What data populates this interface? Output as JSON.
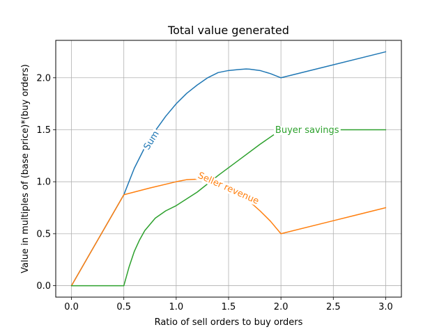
{
  "chart_data": {
    "type": "line",
    "title": "Total value generated",
    "xlabel": "Ratio of sell orders to buy orders",
    "ylabel": "Value in multiples of (base price)*(buy orders)",
    "xlim": [
      -0.15,
      3.15
    ],
    "ylim": [
      -0.11,
      2.36
    ],
    "xticks": [
      0.0,
      0.5,
      1.0,
      1.5,
      2.0,
      2.5,
      3.0
    ],
    "xtick_labels": [
      "0.0",
      "0.5",
      "1.0",
      "1.5",
      "2.0",
      "2.5",
      "3.0"
    ],
    "yticks": [
      0.0,
      0.5,
      1.0,
      1.5,
      2.0
    ],
    "ytick_labels": [
      "0.0",
      "0.5",
      "1.0",
      "1.5",
      "2.0"
    ],
    "grid": true,
    "series": [
      {
        "name": "Sum",
        "color": "#1f77b4",
        "x": [
          0.0,
          0.5,
          0.6,
          0.7,
          0.8,
          0.9,
          1.0,
          1.1,
          1.2,
          1.3,
          1.4,
          1.5,
          1.6,
          1.667,
          1.7,
          1.8,
          1.9,
          2.0,
          2.5,
          3.0
        ],
        "y": [
          0.0,
          0.875,
          1.13,
          1.33,
          1.49,
          1.63,
          1.75,
          1.85,
          1.93,
          2.0,
          2.05,
          2.07,
          2.08,
          2.085,
          2.083,
          2.07,
          2.04,
          2.0,
          2.125,
          2.25
        ]
      },
      {
        "name": "Seller revenue",
        "color": "#ff7f0e",
        "x": [
          0.0,
          0.5,
          0.75,
          1.0,
          1.1,
          1.2,
          1.3,
          1.4,
          1.5,
          1.6,
          1.7,
          1.8,
          1.9,
          2.0,
          2.5,
          3.0
        ],
        "y": [
          0.0,
          0.875,
          0.94,
          1.0,
          1.02,
          1.025,
          1.01,
          0.98,
          0.935,
          0.88,
          0.81,
          0.72,
          0.62,
          0.5,
          0.625,
          0.75
        ]
      },
      {
        "name": "Buyer savings",
        "color": "#2ca02c",
        "x": [
          0.0,
          0.5,
          0.55,
          0.6,
          0.65,
          0.7,
          0.8,
          0.9,
          1.0,
          1.2,
          1.4,
          1.6,
          1.8,
          2.0,
          2.5,
          3.0
        ],
        "y": [
          0.0,
          0.0,
          0.18,
          0.33,
          0.44,
          0.53,
          0.65,
          0.72,
          0.77,
          0.9,
          1.06,
          1.21,
          1.36,
          1.5,
          1.5,
          1.5
        ]
      }
    ],
    "inline_labels": [
      {
        "text": "Sum",
        "series": 0,
        "x": 0.76,
        "y": 1.4
      },
      {
        "text": "Seller revenue",
        "series": 1,
        "x": 1.5,
        "y": 0.94
      },
      {
        "text": "Buyer savings",
        "series": 2,
        "x": 2.25,
        "y": 1.5
      }
    ]
  }
}
